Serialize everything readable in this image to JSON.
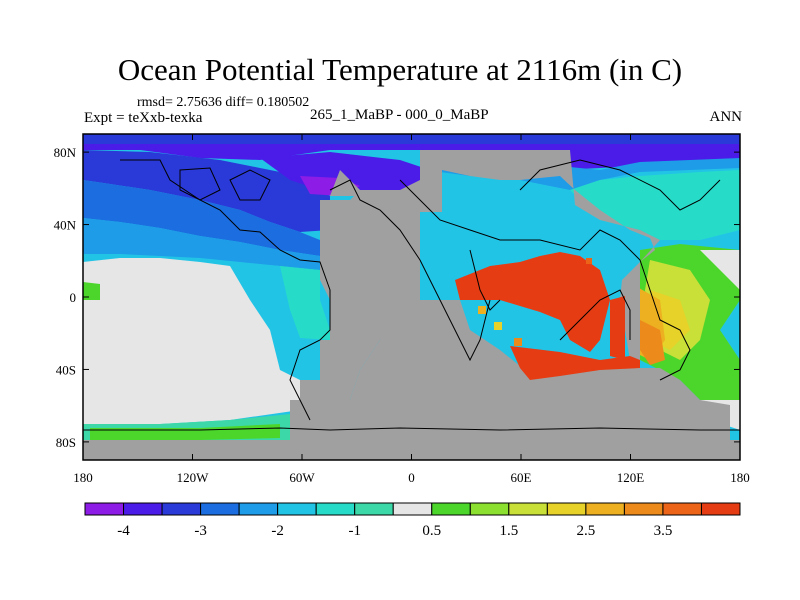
{
  "title": "Ocean Potential Temperature at 2116m (in C)",
  "stats": "rmsd= 2.75636  diff= 0.180502",
  "experiment": "Expt = teXxb-texka",
  "subtitle": "265_1_MaBP - 000_0_MaBP",
  "season": "ANN",
  "map": {
    "lon_range": [
      -180,
      180
    ],
    "lat_range": [
      -90,
      90
    ],
    "x_ticks": [
      {
        "lon": -180,
        "label": "180"
      },
      {
        "lon": -120,
        "label": "120W"
      },
      {
        "lon": -60,
        "label": "60W"
      },
      {
        "lon": 0,
        "label": "0"
      },
      {
        "lon": 60,
        "label": "60E"
      },
      {
        "lon": 120,
        "label": "120E"
      },
      {
        "lon": 180,
        "label": "180"
      }
    ],
    "y_ticks": [
      {
        "lat": 80,
        "label": "80N"
      },
      {
        "lat": 40,
        "label": "40N"
      },
      {
        "lat": 0,
        "label": "0"
      },
      {
        "lat": -40,
        "label": "40S"
      },
      {
        "lat": -80,
        "label": "80S"
      }
    ],
    "land_color": "#a0a0a0",
    "near_zero_color": "#e6e6e6"
  },
  "colorbar": {
    "colors": [
      "#8c1ce6",
      "#4b1ce8",
      "#2a3ad8",
      "#1c6ee0",
      "#1e9ce8",
      "#22c4e6",
      "#26dcc8",
      "#3cd8a8",
      "#e6e6e6",
      "#4cd62c",
      "#8ce030",
      "#c8e038",
      "#e6d228",
      "#ecb020",
      "#ec8a1c",
      "#ec6418",
      "#e63c14"
    ],
    "labels": [
      {
        "after_box": 1,
        "text": "-4"
      },
      {
        "after_box": 3,
        "text": "-3"
      },
      {
        "after_box": 5,
        "text": "-2"
      },
      {
        "after_box": 7,
        "text": "-1"
      },
      {
        "after_box": 9,
        "text": "0.5"
      },
      {
        "after_box": 11,
        "text": "1.5"
      },
      {
        "after_box": 13,
        "text": "2.5"
      },
      {
        "after_box": 15,
        "text": "3.5"
      }
    ]
  }
}
